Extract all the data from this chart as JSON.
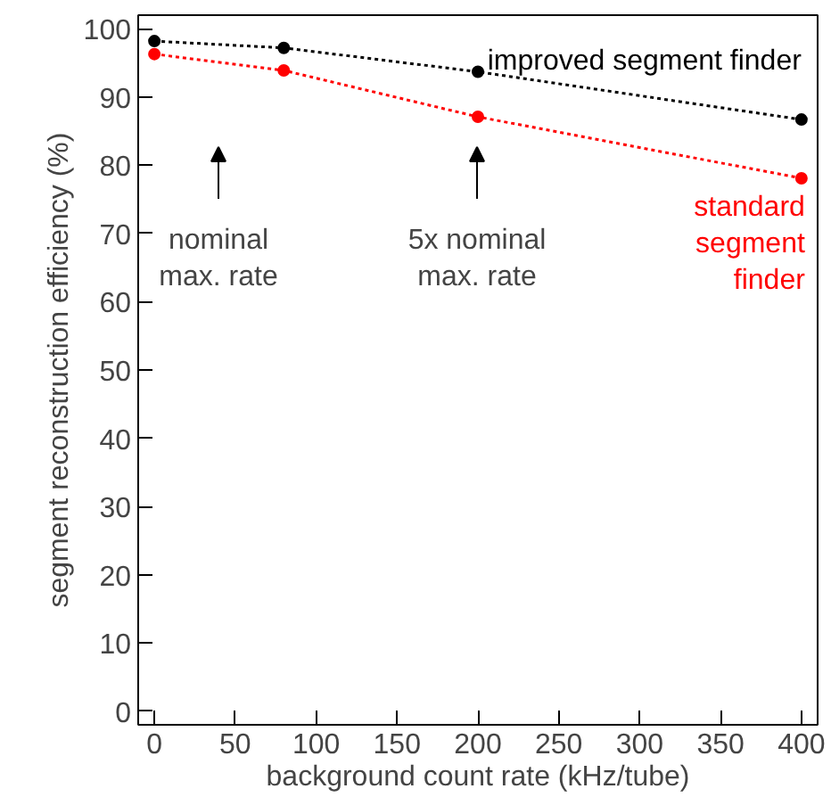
{
  "chart_data": {
    "type": "line",
    "xlabel": "background count rate (kHz/tube)",
    "ylabel": "segment reconstruction efficiency (%)",
    "x": [
      0,
      80,
      200,
      400
    ],
    "series": [
      {
        "name": "improved segment finder",
        "color": "#000000",
        "values": [
          98.2,
          97.2,
          93.7,
          86.7
        ]
      },
      {
        "name": "standard\nsegment\nfinder",
        "color": "#ff0000",
        "values": [
          96.3,
          93.9,
          87.1,
          78.1
        ]
      }
    ],
    "annotations": [
      "nominal\nmax. rate",
      "5x nominal\nmax. rate"
    ],
    "xlim": [
      -10,
      410
    ],
    "ylim": [
      -2,
      102
    ],
    "xticks": [
      0,
      50,
      100,
      150,
      200,
      250,
      300,
      350,
      400
    ],
    "yticks": [
      0,
      10,
      20,
      30,
      40,
      50,
      60,
      70,
      80,
      90,
      100
    ],
    "grid": false,
    "marker": "circle",
    "line_style": "dotted"
  }
}
